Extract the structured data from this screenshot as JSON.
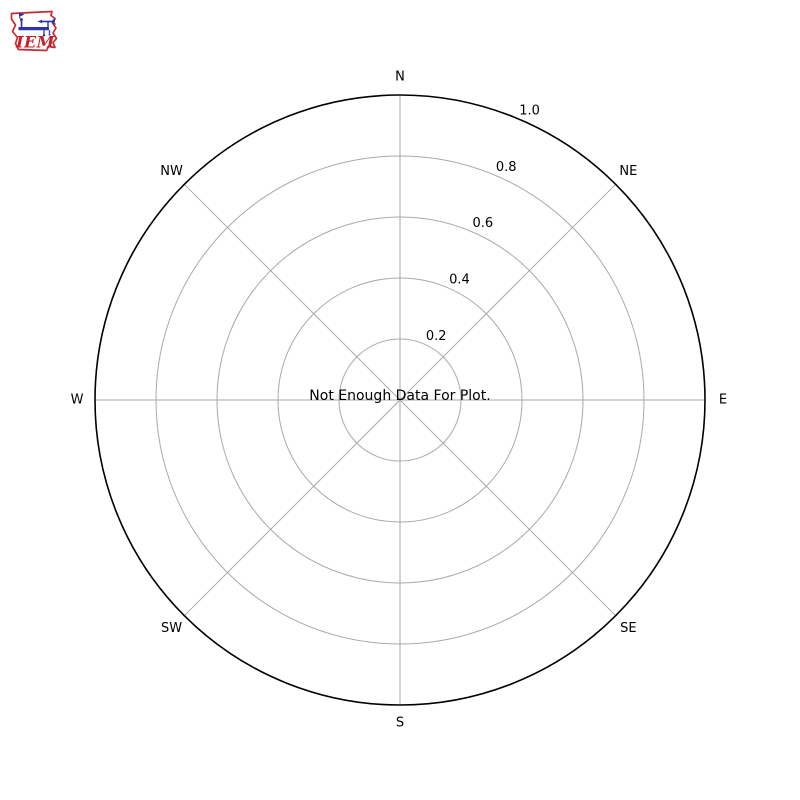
{
  "logo": {
    "text": "IEM",
    "outline_color": "#c62b33",
    "instrument_color": "#2b35a8",
    "text_color": "#c6202c"
  },
  "chart_data": {
    "type": "polar",
    "subtype": "windrose",
    "title": "",
    "annotation": "Not Enough Data For Plot.",
    "direction_labels": [
      "N",
      "NE",
      "E",
      "SE",
      "S",
      "SW",
      "W",
      "NW"
    ],
    "radial_tick_values": [
      0.2,
      0.4,
      0.6,
      0.8,
      1.0
    ],
    "radial_tick_labels": [
      "0.2",
      "0.4",
      "0.6",
      "0.8",
      "1.0"
    ],
    "rmin": 0,
    "rmax": 1.0,
    "rlabel_angle_deg": 22.5,
    "series": [],
    "grid": true,
    "grid_color": "#aaaaaa",
    "spine_color": "#000000",
    "label_color": "#000000",
    "background_color": "#ffffff"
  }
}
